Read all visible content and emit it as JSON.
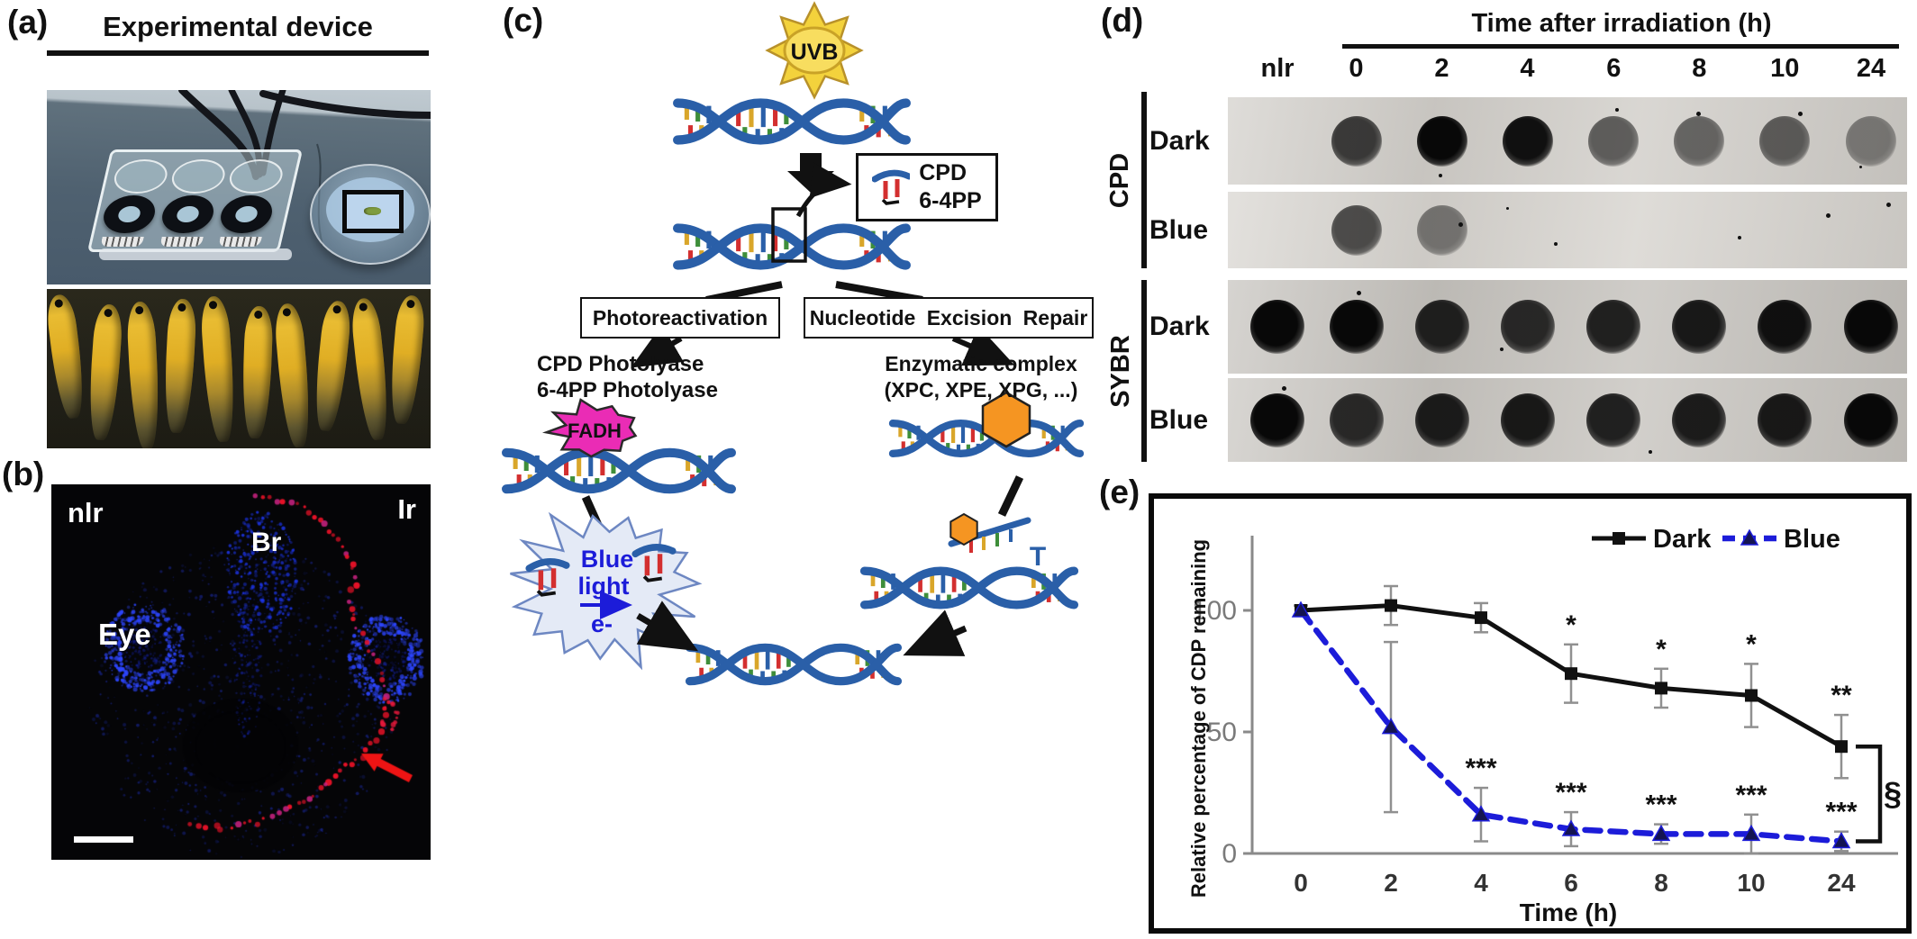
{
  "figure": {
    "panels": {
      "a": {
        "label": "(a)",
        "title": "Experimental device"
      },
      "b": {
        "label": "(b)",
        "labels": {
          "non_irradiated_side": "nlr",
          "irradiated_side": "Ir",
          "brain": "Br",
          "eye": "Eye"
        }
      },
      "c": {
        "label": "(c)",
        "uv_source": "UVB",
        "lesion_box": {
          "line1": "CPD",
          "line2": "6-4PP"
        },
        "pathway_left": "Photoreactivation",
        "pathway_right": "Nucleotide Excision Repair",
        "left_enzymes": {
          "line1": "CPD Photolyase",
          "line2": "6-4PP Photolyase"
        },
        "cofactor": "FADH",
        "burst": {
          "line1": "Blue",
          "line2": "light",
          "line3": "e-"
        },
        "right_enzymes": {
          "line1": "Enzymatic complex",
          "line2": "(XPC, XPE, XPG, ...)"
        },
        "excised_base": "T"
      },
      "d": {
        "label": "(d)",
        "title": "Time after irradiation (h)",
        "columns": [
          "nlr",
          "0",
          "2",
          "4",
          "6",
          "8",
          "10",
          "24"
        ],
        "groups": [
          {
            "name": "CPD",
            "rows": [
              {
                "label": "Dark",
                "bg": "#d2cfca",
                "dots": [
                  0,
                  0.7,
                  1,
                  0.95,
                  0.5,
                  0.45,
                  0.5,
                  0.3
                ],
                "specks": [
                  [
                    57,
                    12,
                    4
                  ],
                  [
                    69,
                    16,
                    5
                  ],
                  [
                    84,
                    16,
                    5
                  ],
                  [
                    31,
                    88,
                    4
                  ],
                  [
                    93,
                    78,
                    3
                  ]
                ]
              },
              {
                "label": "Blue",
                "bg": "#d8d5d0",
                "dots": [
                  0,
                  0.6,
                  0.35,
                  0,
                  0,
                  0,
                  0,
                  0
                ],
                "specks": [
                  [
                    34,
                    40,
                    5
                  ],
                  [
                    48,
                    66,
                    4
                  ],
                  [
                    75,
                    58,
                    4
                  ],
                  [
                    88,
                    28,
                    5
                  ],
                  [
                    97,
                    14,
                    5
                  ],
                  [
                    41,
                    20,
                    3
                  ]
                ]
              }
            ]
          },
          {
            "name": "SYBR",
            "rows": [
              {
                "label": "Dark",
                "bg": "#c6c3be",
                "dots": [
                  1,
                  1,
                  0.85,
                  0.8,
                  0.85,
                  0.9,
                  0.95,
                  1
                ],
                "specks": [
                  [
                    19,
                    12,
                    5
                  ],
                  [
                    40,
                    72,
                    4
                  ]
                ]
              },
              {
                "label": "Blue",
                "bg": "#c9c6c1",
                "dots": [
                  1,
                  0.8,
                  0.88,
                  0.9,
                  0.85,
                  0.88,
                  0.9,
                  1
                ],
                "specks": [
                  [
                    8,
                    10,
                    5
                  ],
                  [
                    62,
                    86,
                    4
                  ]
                ]
              }
            ]
          }
        ]
      },
      "e": {
        "label": "(e)"
      }
    }
  },
  "chart_data": {
    "type": "line",
    "title": "",
    "xlabel": "Time (h)",
    "ylabel": "Relative percentage of CDP remaining",
    "categories": [
      "0",
      "2",
      "4",
      "6",
      "8",
      "10",
      "24"
    ],
    "yticks": [
      0,
      50,
      100
    ],
    "ylim": [
      0,
      130
    ],
    "grid": false,
    "legend_position": "top-right-inside",
    "series": [
      {
        "name": "Dark",
        "color": "#111111",
        "line_style": "solid",
        "marker": "square",
        "values": [
          100,
          102,
          97,
          74,
          68,
          65,
          44
        ],
        "errors": [
          2,
          8,
          6,
          12,
          8,
          13,
          13
        ],
        "significance": [
          "",
          "",
          "",
          "*",
          "*",
          "*",
          "**"
        ]
      },
      {
        "name": "Blue",
        "color": "#1c1cd9",
        "line_style": "dashed",
        "marker": "triangle",
        "values": [
          100,
          52,
          16,
          10,
          8,
          8,
          5
        ],
        "errors": [
          2,
          35,
          11,
          7,
          4,
          8,
          4
        ],
        "significance": [
          "",
          "",
          "***",
          "***",
          "***",
          "***",
          "***"
        ]
      }
    ],
    "comparison_bracket": {
      "label": "§",
      "between": [
        "Dark",
        "Blue"
      ],
      "at_category": "24"
    }
  },
  "colors": {
    "dna_strand": "#2a5fa8",
    "blue_accent": "#1c1cd9",
    "magenta_fadh": "#ea2cb5",
    "orange_complex": "#f59522",
    "red_signal": "#ee1414",
    "sun_yellow": "#f5d342"
  }
}
